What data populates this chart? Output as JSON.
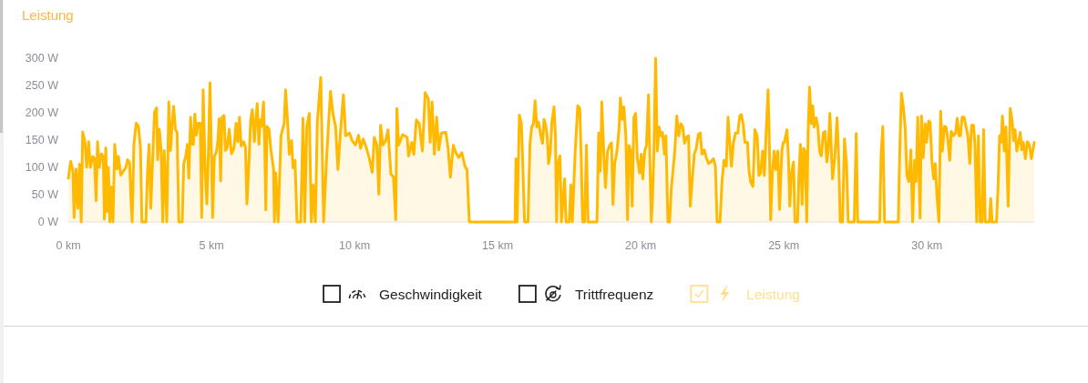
{
  "chart_data": {
    "type": "area",
    "title": "Leistung",
    "legend": "bottom",
    "xlim": [
      0,
      33.75
    ],
    "xticks": [
      {
        "value": 0,
        "label": "0 km"
      },
      {
        "value": 5,
        "label": "5 km"
      },
      {
        "value": 10,
        "label": "10 km"
      },
      {
        "value": 15,
        "label": "15 km"
      },
      {
        "value": 20,
        "label": "20 km"
      },
      {
        "value": 25,
        "label": "25 km"
      },
      {
        "value": 30,
        "label": "30 km"
      }
    ],
    "ylim": [
      0,
      300
    ],
    "yticks": [
      {
        "value": 0,
        "label": "0 W"
      },
      {
        "value": 50,
        "label": "50 W"
      },
      {
        "value": 100,
        "label": "100 W"
      },
      {
        "value": 150,
        "label": "150 W"
      },
      {
        "value": 200,
        "label": "200 W"
      },
      {
        "value": 250,
        "label": "250 W"
      },
      {
        "value": 300,
        "label": "300 W"
      }
    ],
    "x": [
      0,
      0.08,
      0.16,
      0.2,
      0.27,
      0.33,
      0.39,
      0.45,
      0.5,
      0.58,
      0.64,
      0.71,
      0.77,
      0.85,
      0.91,
      0.97,
      1.02,
      1.08,
      1.16,
      1.22,
      1.26,
      1.31,
      1.35,
      1.4,
      1.45,
      1.51,
      1.56,
      1.62,
      1.7,
      1.75,
      1.83,
      1.91,
      2.01,
      2.07,
      2.14,
      2.19,
      2.23,
      2.29,
      2.37,
      2.45,
      2.52,
      2.57,
      2.71,
      2.77,
      2.82,
      2.88,
      2.95,
      3.01,
      3.08,
      3.12,
      3.18,
      3.24,
      3.3,
      3.35,
      3.44,
      3.51,
      3.57,
      3.62,
      3.68,
      3.74,
      3.8,
      3.86,
      3.98,
      4.03,
      4.1,
      4.16,
      4.21,
      4.27,
      4.32,
      4.37,
      4.42,
      4.47,
      4.54,
      4.61,
      4.66,
      4.71,
      4.78,
      4.84,
      4.89,
      4.95,
      5.01,
      5.04,
      5.1,
      5.17,
      5.22,
      5.27,
      5.32,
      5.37,
      5.44,
      5.49,
      5.55,
      5.62,
      5.7,
      5.79,
      5.86,
      5.92,
      5.98,
      6.04,
      6.13,
      6.19,
      6.24,
      6.31,
      6.37,
      6.43,
      6.5,
      6.55,
      6.6,
      6.66,
      6.7,
      6.75,
      6.82,
      6.86,
      6.9,
      6.94,
      7.01,
      7.08,
      7.17,
      7.2,
      7.25,
      7.33,
      7.43,
      7.54,
      7.59,
      7.66,
      7.72,
      7.8,
      7.85,
      7.92,
      7.99,
      8.12,
      8.2,
      8.26,
      8.33,
      8.42,
      8.49,
      8.55,
      8.63,
      8.7,
      8.82,
      8.92,
      9.02,
      9.08,
      9.16,
      9.25,
      9.34,
      9.42,
      9.5,
      9.61,
      9.69,
      9.82,
      9.92,
      10.03,
      10.14,
      10.21,
      10.3,
      10.4,
      10.51,
      10.62,
      10.69,
      10.78,
      10.85,
      10.91,
      10.99,
      11.09,
      11.17,
      11.27,
      11.36,
      11.44,
      11.48,
      11.54,
      11.68,
      11.84,
      11.89,
      12.0,
      12.07,
      12.16,
      12.26,
      12.37,
      12.47,
      12.58,
      12.64,
      12.71,
      12.79,
      12.87,
      12.94,
      13.03,
      13.19,
      13.27,
      13.35,
      13.45,
      13.54,
      13.64,
      13.75,
      13.86,
      13.93,
      14.01,
      15.61,
      15.64,
      15.68,
      15.76,
      15.83,
      15.87,
      15.94,
      16.06,
      16.13,
      16.19,
      16.25,
      16.31,
      16.37,
      16.43,
      16.51,
      16.57,
      16.62,
      16.69,
      16.73,
      16.78,
      16.84,
      16.9,
      16.97,
      17.02,
      17.06,
      17.11,
      17.18,
      17.23,
      17.34,
      17.39,
      17.5,
      17.56,
      17.61,
      17.71,
      17.8,
      17.87,
      17.92,
      17.97,
      18.04,
      18.1,
      18.16,
      18.47,
      18.53,
      18.59,
      18.64,
      18.71,
      18.77,
      18.84,
      18.92,
      18.98,
      19.03,
      19.09,
      19.17,
      19.24,
      19.29,
      19.35,
      19.41,
      19.48,
      19.54,
      19.59,
      19.65,
      19.7,
      19.76,
      19.82,
      19.88,
      19.96,
      20.02,
      20.07,
      20.14,
      20.2,
      20.27,
      20.33,
      20.37,
      20.41,
      20.46,
      20.52,
      20.58,
      20.64,
      20.7,
      20.76,
      20.83,
      20.88,
      20.95,
      21.01,
      21.07,
      21.13,
      21.19,
      21.26,
      21.33,
      21.4,
      21.47,
      21.53,
      21.6,
      21.67,
      21.73,
      21.8,
      21.87,
      21.94,
      22.01,
      22.08,
      22.14,
      22.22,
      22.29,
      22.37,
      22.45,
      22.54,
      22.61,
      22.67,
      22.77,
      22.84,
      22.91,
      22.99,
      23.05,
      23.11,
      23.17,
      23.24,
      23.31,
      23.39,
      23.46,
      23.51,
      23.58,
      23.64,
      23.73,
      23.78,
      23.84,
      23.92,
      23.99,
      24.07,
      24.13,
      24.19,
      24.26,
      24.32,
      24.39,
      24.45,
      24.49,
      24.54,
      24.6,
      24.66,
      24.72,
      24.79,
      24.85,
      24.93,
      24.98,
      25.02,
      25.11,
      25.16,
      25.21,
      25.27,
      25.34,
      25.39,
      25.48,
      25.53,
      25.58,
      25.64,
      25.69,
      25.74,
      25.8,
      25.85,
      25.9,
      25.96,
      26.01,
      26.06,
      26.13,
      26.19,
      26.25,
      26.31,
      26.38,
      26.44,
      26.5,
      26.55,
      26.61,
      26.7,
      26.78,
      26.86,
      26.92,
      26.97,
      27.05,
      27.12,
      27.19,
      27.25,
      27.46,
      27.53,
      27.58,
      28.35,
      28.4,
      28.46,
      28.52,
      29.0,
      29.05,
      29.11,
      29.17,
      29.24,
      29.3,
      29.37,
      29.44,
      29.5,
      29.57,
      29.62,
      29.68,
      29.76,
      29.81,
      29.87,
      29.94,
      29.99,
      30.06,
      30.11,
      30.18,
      30.24,
      30.29,
      30.36,
      30.42,
      30.48,
      30.54,
      30.61,
      30.67,
      30.73,
      30.8,
      30.85,
      30.92,
      31.0,
      31.06,
      31.12,
      31.17,
      31.23,
      31.3,
      31.37,
      31.43,
      31.5,
      31.56,
      31.63,
      31.68,
      31.74,
      31.8,
      31.86,
      31.93,
      31.98,
      32.04,
      32.18,
      32.23,
      32.28,
      32.43,
      32.48,
      32.54,
      32.59,
      32.64,
      32.7,
      32.76,
      32.84,
      32.91,
      32.98,
      33.03,
      33.08,
      33.14,
      33.21,
      33.26,
      33.31,
      33.37,
      33.44,
      33.51,
      33.58,
      33.65,
      33.75
    ],
    "series": [
      {
        "name": "Geschwindigkeit",
        "values": [
          null,
          null,
          null,
          null,
          null,
          null,
          null,
          null,
          null,
          null,
          null,
          null,
          null,
          null,
          null,
          null,
          null,
          null,
          null,
          null,
          null,
          null,
          null,
          null,
          null,
          null,
          null,
          null,
          null,
          null,
          null,
          null,
          null,
          null,
          null,
          null,
          null,
          null,
          null,
          null,
          null,
          null,
          null,
          null,
          null,
          null,
          null,
          null,
          null,
          null,
          null,
          null,
          null,
          null,
          null,
          null,
          null,
          null,
          null,
          null,
          null,
          null,
          null,
          null,
          null,
          null,
          null,
          null,
          null,
          null,
          null,
          null,
          null,
          null,
          null,
          null,
          null,
          null,
          null,
          null,
          null,
          null,
          null,
          null,
          null,
          null,
          null,
          null,
          null,
          null,
          null,
          null,
          null,
          null,
          null,
          null,
          null,
          null,
          null,
          null,
          null,
          null,
          null,
          null,
          null,
          null,
          null,
          null,
          null,
          null,
          null,
          null,
          null,
          null,
          null,
          null,
          null,
          null,
          null,
          null,
          null,
          null,
          null,
          null,
          null,
          null,
          null,
          null,
          null,
          null,
          null,
          null,
          null,
          null,
          null,
          null,
          null,
          null,
          null,
          null,
          null,
          null,
          null,
          null,
          null,
          null,
          null,
          null,
          null,
          null,
          null,
          null,
          null,
          null,
          null,
          null,
          null,
          null,
          null,
          null,
          null,
          null,
          null,
          null,
          null,
          null,
          null,
          null,
          null,
          null,
          null,
          null,
          null,
          null,
          null,
          null,
          null,
          null,
          null,
          null,
          null,
          null,
          null,
          null,
          null,
          null,
          null,
          null,
          null,
          null,
          null,
          null,
          null,
          null,
          null,
          null,
          null,
          null,
          null,
          null,
          null,
          null,
          null,
          null,
          null,
          null,
          null,
          null,
          null,
          null,
          null,
          null,
          null,
          null,
          null,
          null,
          null,
          null,
          null,
          null,
          null,
          null,
          null,
          null,
          null,
          null,
          null,
          null,
          null,
          null,
          null,
          null,
          null,
          null,
          null,
          null,
          null,
          null,
          null,
          null,
          null,
          null,
          null,
          null,
          null,
          null,
          null,
          null,
          null,
          null,
          null,
          null,
          null,
          null,
          null,
          null,
          null,
          null,
          null,
          null,
          null,
          null,
          null,
          null,
          null,
          null,
          null,
          null,
          null,
          null,
          null,
          null,
          null,
          null,
          null,
          null,
          null,
          null,
          null,
          null,
          null,
          null,
          null,
          null,
          null,
          null,
          null,
          null,
          null,
          null,
          null,
          null,
          null,
          null,
          null,
          null,
          null,
          null,
          null,
          null,
          null,
          null,
          null,
          null,
          null,
          null,
          null,
          null,
          null,
          null,
          null,
          null,
          null,
          null,
          null,
          null,
          null,
          null,
          null,
          null,
          null,
          null,
          null,
          null,
          null,
          null,
          null,
          null,
          null,
          null,
          null,
          null,
          null,
          null,
          null,
          null,
          null,
          null,
          null,
          null,
          null,
          null,
          null,
          null,
          null,
          null,
          null,
          null,
          null,
          null,
          null,
          null,
          null,
          null,
          null,
          null,
          null,
          null,
          null,
          null,
          null,
          null,
          null,
          null,
          null,
          null,
          null,
          null,
          null,
          null,
          null,
          null,
          null,
          null,
          null,
          null,
          null,
          null,
          null,
          null,
          null,
          null,
          null,
          null,
          null,
          null,
          null,
          null,
          null,
          null,
          null,
          null,
          null,
          null,
          null,
          null,
          null,
          null,
          null,
          null,
          null,
          null,
          null,
          null,
          null,
          null,
          null,
          null,
          null,
          null,
          null,
          null,
          null,
          null,
          null,
          null,
          null,
          null,
          null,
          null,
          null,
          null,
          null,
          null,
          null,
          null,
          null,
          null,
          null,
          null,
          null,
          null,
          null,
          null,
          null,
          null,
          null,
          null,
          null,
          null,
          null,
          null,
          null,
          null,
          null,
          null,
          null,
          null,
          null,
          null,
          null,
          null,
          null,
          null,
          null,
          null,
          null,
          null
        ]
      },
      {
        "name": "Trittfrequenz",
        "values": [
          null,
          null,
          null,
          null,
          null,
          null,
          null,
          null,
          null,
          null,
          null,
          null,
          null,
          null,
          null,
          null,
          null,
          null,
          null,
          null,
          null,
          null,
          null,
          null,
          null,
          null,
          null,
          null,
          null,
          null,
          null,
          null,
          null,
          null,
          null,
          null,
          null,
          null,
          null,
          null,
          null,
          null,
          null,
          null,
          null,
          null,
          null,
          null,
          null,
          null,
          null,
          null,
          null,
          null,
          null,
          null,
          null,
          null,
          null,
          null,
          null,
          null,
          null,
          null,
          null,
          null,
          null,
          null,
          null,
          null,
          null,
          null,
          null,
          null,
          null,
          null,
          null,
          null,
          null,
          null,
          null,
          null,
          null,
          null,
          null,
          null,
          null,
          null,
          null,
          null,
          null,
          null,
          null,
          null,
          null,
          null,
          null,
          null,
          null,
          null,
          null,
          null,
          null,
          null,
          null,
          null,
          null,
          null,
          null,
          null,
          null,
          null,
          null,
          null,
          null,
          null,
          null,
          null,
          null,
          null,
          null,
          null,
          null,
          null,
          null,
          null,
          null,
          null,
          null,
          null,
          null,
          null,
          null,
          null,
          null,
          null,
          null,
          null,
          null,
          null,
          null,
          null,
          null,
          null,
          null,
          null,
          null,
          null,
          null,
          null,
          null,
          null,
          null,
          null,
          null,
          null,
          null,
          null,
          null,
          null,
          null,
          null,
          null,
          null,
          null,
          null,
          null,
          null,
          null,
          null,
          null,
          null,
          null,
          null,
          null,
          null,
          null,
          null,
          null,
          null,
          null,
          null,
          null,
          null,
          null,
          null,
          null,
          null,
          null,
          null,
          null,
          null,
          null,
          null,
          null,
          null,
          null,
          null,
          null,
          null,
          null,
          null,
          null,
          null,
          null,
          null,
          null,
          null,
          null,
          null,
          null,
          null,
          null,
          null,
          null,
          null,
          null,
          null,
          null,
          null,
          null,
          null,
          null,
          null,
          null,
          null,
          null,
          null,
          null,
          null,
          null,
          null,
          null,
          null,
          null,
          null,
          null,
          null,
          null,
          null,
          null,
          null,
          null,
          null,
          null,
          null,
          null,
          null,
          null,
          null,
          null,
          null,
          null,
          null,
          null,
          null,
          null,
          null,
          null,
          null,
          null,
          null,
          null,
          null,
          null,
          null,
          null,
          null,
          null,
          null,
          null,
          null,
          null,
          null,
          null,
          null,
          null,
          null,
          null,
          null,
          null,
          null,
          null,
          null,
          null,
          null,
          null,
          null,
          null,
          null,
          null,
          null,
          null,
          null,
          null,
          null,
          null,
          null,
          null,
          null,
          null,
          null,
          null,
          null,
          null,
          null,
          null,
          null,
          null,
          null,
          null,
          null,
          null,
          null,
          null,
          null,
          null,
          null,
          null,
          null,
          null,
          null,
          null,
          null,
          null,
          null,
          null,
          null,
          null,
          null,
          null,
          null,
          null,
          null,
          null,
          null,
          null,
          null,
          null,
          null,
          null,
          null,
          null,
          null,
          null,
          null,
          null,
          null,
          null,
          null,
          null,
          null,
          null,
          null,
          null,
          null,
          null,
          null,
          null,
          null,
          null,
          null,
          null,
          null,
          null,
          null,
          null,
          null,
          null,
          null,
          null,
          null,
          null,
          null,
          null,
          null,
          null,
          null,
          null,
          null,
          null,
          null,
          null,
          null,
          null,
          null,
          null,
          null,
          null,
          null,
          null,
          null,
          null,
          null,
          null,
          null,
          null,
          null,
          null,
          null,
          null,
          null,
          null,
          null,
          null,
          null,
          null,
          null,
          null,
          null,
          null,
          null,
          null,
          null,
          null,
          null,
          null,
          null,
          null,
          null,
          null,
          null,
          null,
          null,
          null,
          null,
          null,
          null,
          null,
          null,
          null,
          null,
          null,
          null,
          null,
          null,
          null,
          null,
          null,
          null,
          null,
          null,
          null,
          null,
          null,
          null,
          null,
          null,
          null,
          null,
          null,
          null,
          null,
          null,
          null,
          null,
          null,
          null
        ]
      },
      {
        "name": "Leistung",
        "color": "#ffb900",
        "values": [
          80,
          111,
          94,
          8,
          97,
          25,
          106,
          0,
          165,
          147,
          100,
          147,
          100,
          120,
          117,
          39,
          147,
          100,
          125,
          120,
          5,
          136,
          19,
          100,
          0,
          64,
          0,
          142,
          97,
          120,
          86,
          92,
          100,
          114,
          108,
          39,
          0,
          142,
          181,
          175,
          136,
          0,
          0,
          97,
          142,
          25,
          120,
          201,
          209,
          114,
          170,
          131,
          0,
          131,
          0,
          220,
          131,
          175,
          212,
          170,
          164,
          0,
          0,
          106,
          120,
          142,
          80,
          192,
          142,
          142,
          198,
          159,
          181,
          181,
          8,
          242,
          97,
          33,
          120,
          255,
          97,
          8,
          120,
          128,
          147,
          189,
          75,
          192,
          195,
          131,
          136,
          170,
          125,
          136,
          181,
          147,
          192,
          139,
          147,
          136,
          33,
          108,
          187,
          206,
          147,
          187,
          217,
          142,
          187,
          175,
          220,
          147,
          22,
          175,
          170,
          131,
          97,
          0,
          90,
          0,
          158,
          180,
          242,
          185,
          124,
          149,
          99,
          113,
          0,
          0,
          190,
          0,
          174,
          199,
          0,
          68,
          0,
          183,
          265,
          0,
          113,
          169,
          239,
          197,
          174,
          96,
          158,
          233,
          158,
          163,
          149,
          141,
          159,
          135,
          152,
          138,
          118,
          91,
          155,
          141,
          51,
          177,
          141,
          149,
          169,
          88,
          82,
          4,
          208,
          141,
          160,
          155,
          121,
          146,
          124,
          187,
          180,
          130,
          237,
          225,
          146,
          220,
          124,
          192,
          132,
          163,
          164,
          135,
          82,
          141,
          127,
          118,
          127,
          102,
          96,
          0,
          0,
          116,
          0,
          196,
          180,
          121,
          0,
          0,
          144,
          174,
          180,
          222,
          174,
          183,
          158,
          144,
          188,
          174,
          158,
          107,
          130,
          185,
          211,
          158,
          0,
          107,
          121,
          0,
          79,
          0,
          0,
          68,
          0,
          130,
          213,
          208,
          118,
          0,
          0,
          141,
          0,
          0,
          163,
          93,
          220,
          124,
          63,
          130,
          141,
          145,
          32,
          107,
          130,
          169,
          227,
          188,
          211,
          158,
          4,
          140,
          130,
          29,
          191,
          199,
          118,
          90,
          124,
          79,
          130,
          141,
          233,
          90,
          0,
          40,
          130,
          300,
          130,
          174,
          158,
          164,
          124,
          158,
          0,
          0,
          63,
          96,
          130,
          194,
          158,
          180,
          174,
          144,
          155,
          158,
          29,
          79,
          124,
          135,
          160,
          163,
          124,
          132,
          118,
          107,
          110,
          116,
          102,
          0,
          0,
          74,
          113,
          102,
          192,
          146,
          102,
          146,
          163,
          163,
          194,
          197,
          180,
          146,
          146,
          96,
          74,
          65,
          169,
          158,
          85,
          90,
          130,
          85,
          174,
          242,
          158,
          4,
          90,
          130,
          96,
          130,
          23,
          130,
          146,
          146,
          169,
          118,
          29,
          90,
          110,
          0,
          0,
          90,
          142,
          32,
          135,
          130,
          0,
          169,
          247,
          180,
          213,
          174,
          191,
          174,
          130,
          121,
          163,
          166,
          110,
          130,
          199,
          79,
          118,
          191,
          113,
          0,
          0,
          152,
          107,
          0,
          0,
          162,
          0,
          0,
          124,
          175,
          0,
          0,
          130,
          236,
          213,
          174,
          85,
          74,
          132,
          0,
          113,
          74,
          192,
          7,
          194,
          118,
          180,
          146,
          185,
          183,
          107,
          79,
          107,
          40,
          0,
          203,
          130,
          175,
          174,
          152,
          113,
          166,
          158,
          163,
          190,
          158,
          158,
          192,
          192,
          174,
          158,
          107,
          177,
          177,
          141,
          0,
          158,
          0,
          0,
          169,
          0,
          0,
          43,
          0,
          0,
          57,
          158,
          146,
          194,
          130,
          174,
          29,
          208,
          185,
          149,
          169,
          130,
          149,
          164,
          132,
          146,
          116,
          147,
          141,
          116,
          146
        ]
      }
    ]
  }
}
